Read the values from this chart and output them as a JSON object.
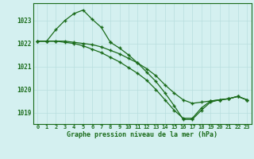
{
  "title": "Graphe pression niveau de la mer (hPa)",
  "bg_color": "#d4f0f0",
  "grid_color": "#b8dede",
  "line_color": "#1a6b1a",
  "marker": "+",
  "xlim": [
    -0.5,
    23.5
  ],
  "ylim": [
    1018.5,
    1023.75
  ],
  "yticks": [
    1019,
    1020,
    1021,
    1022,
    1023
  ],
  "xticks": [
    0,
    1,
    2,
    3,
    4,
    5,
    6,
    7,
    8,
    9,
    10,
    11,
    12,
    13,
    14,
    15,
    16,
    17,
    18,
    19,
    20,
    21,
    22,
    23
  ],
  "lines": [
    {
      "x": [
        0,
        1,
        2,
        3,
        4,
        5,
        6,
        7,
        8
      ],
      "y": [
        1022.1,
        1022.1,
        1022.6,
        1023.0,
        1023.3,
        1023.45,
        1023.05,
        1022.7,
        1022.05
      ]
    },
    {
      "x": [
        0,
        1,
        2,
        3,
        4,
        5,
        6,
        7,
        8,
        9,
        10,
        11,
        12,
        13,
        14,
        15,
        16,
        17,
        18,
        19,
        20,
        21,
        22,
        23
      ],
      "y": [
        1022.1,
        1022.1,
        1022.1,
        1022.1,
        1022.05,
        1022.0,
        1021.95,
        1021.85,
        1021.7,
        1021.55,
        1021.35,
        1021.15,
        1020.9,
        1020.6,
        1020.2,
        1019.85,
        1019.55,
        1019.4,
        1019.45,
        1019.5,
        1019.55,
        1019.6,
        1019.7,
        1019.55
      ],
      "no_marker_start": 0
    },
    {
      "x": [
        0,
        1,
        2,
        3,
        4,
        5,
        6,
        7,
        8,
        9,
        10,
        11,
        12,
        13,
        14,
        15,
        16,
        17,
        18,
        19,
        20,
        21,
        22,
        23
      ],
      "y": [
        1022.1,
        1022.1,
        1022.1,
        1022.05,
        1022.0,
        1021.9,
        1021.75,
        1021.6,
        1021.4,
        1021.2,
        1020.95,
        1020.7,
        1020.4,
        1020.0,
        1019.55,
        1019.1,
        1018.75,
        1018.75,
        1019.2,
        1019.5,
        1019.55,
        1019.6,
        1019.7,
        1019.55
      ]
    },
    {
      "x": [
        8,
        9,
        10,
        11,
        12,
        13,
        14,
        15,
        16,
        17,
        18,
        19,
        20,
        21,
        22,
        23
      ],
      "y": [
        1022.05,
        1021.8,
        1021.5,
        1021.15,
        1020.75,
        1020.35,
        1019.85,
        1019.3,
        1018.7,
        1018.7,
        1019.1,
        1019.45,
        1019.55,
        1019.6,
        1019.7,
        1019.55
      ]
    }
  ]
}
